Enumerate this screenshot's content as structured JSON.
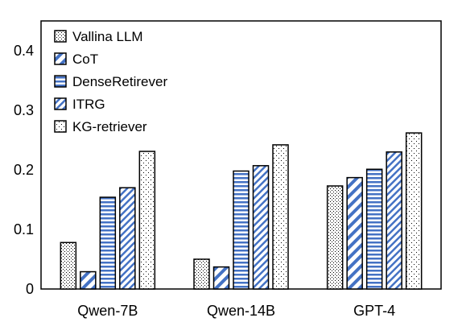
{
  "chart_data": {
    "type": "bar",
    "categories": [
      "Qwen-7B",
      "Qwen-14B",
      "GPT-4"
    ],
    "series": [
      {
        "name": "Vallina LLM",
        "values": [
          0.078,
          0.05,
          0.173
        ],
        "pattern": "dots",
        "color": "#000000"
      },
      {
        "name": "CoT",
        "values": [
          0.029,
          0.037,
          0.187
        ],
        "pattern": "diag-wide",
        "color": "#4472C4"
      },
      {
        "name": "DenseRetirever",
        "values": [
          0.154,
          0.198,
          0.201
        ],
        "pattern": "horizontal",
        "color": "#4472C4"
      },
      {
        "name": "ITRG",
        "values": [
          0.17,
          0.207,
          0.23
        ],
        "pattern": "diag-narrow",
        "color": "#4472C4"
      },
      {
        "name": "KG-retriever",
        "values": [
          0.231,
          0.242,
          0.262
        ],
        "pattern": "sparse-dots",
        "color": "#000000"
      }
    ],
    "y_ticks": [
      "0",
      "0.1",
      "0.2",
      "0.3",
      "0.4"
    ],
    "ylim": [
      0,
      0.45
    ],
    "grid": false,
    "legend_position": "top-left"
  }
}
